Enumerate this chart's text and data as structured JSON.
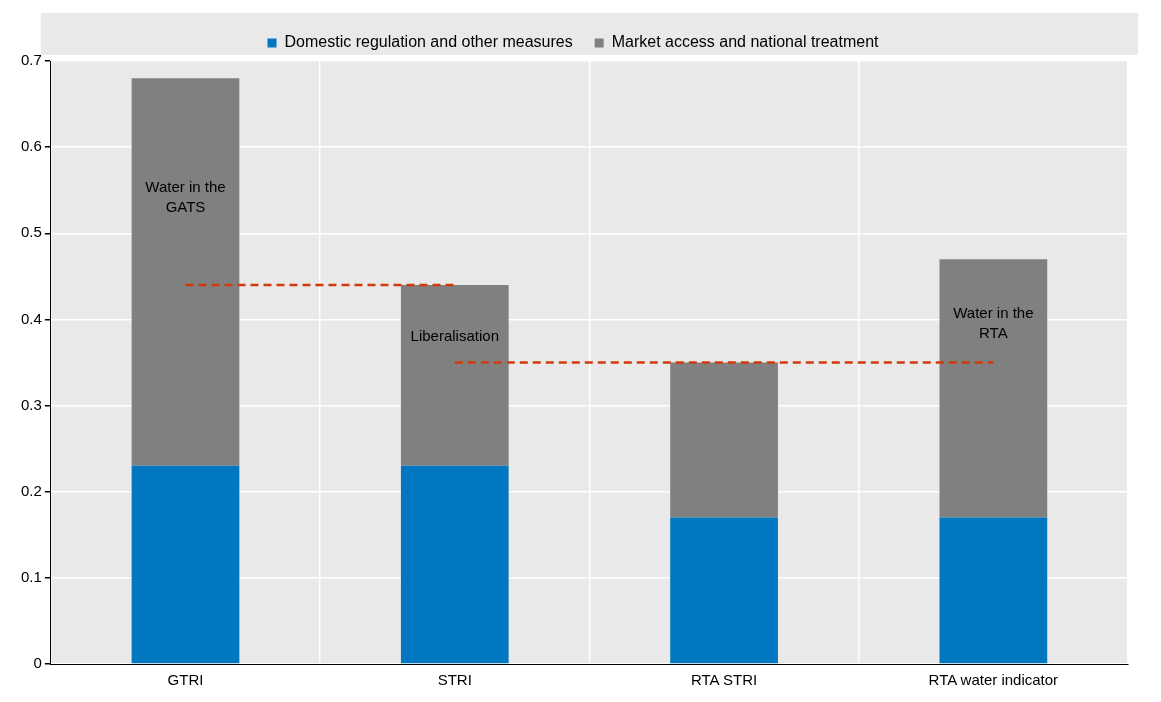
{
  "chart_data": {
    "type": "bar",
    "stacked": true,
    "categories": [
      "GTRI",
      "STRI",
      "RTA STRI",
      "RTA water indicator"
    ],
    "series": [
      {
        "name": "Domestic regulation and other measures",
        "color": "#0077c0",
        "values": [
          0.23,
          0.23,
          0.17,
          0.17
        ]
      },
      {
        "name": "Market access and national treatment",
        "color": "#808080",
        "values": [
          0.45,
          0.21,
          0.18,
          0.3
        ]
      },
      {
        "type": "line",
        "color": "#d4380d",
        "line_style": "dashed",
        "marker": "none",
        "values": [
          0.44,
          0.44,
          null,
          null
        ]
      },
      {
        "type": "line",
        "color": "#d4380d",
        "line_style": "dashed",
        "marker": "none",
        "values": [
          null,
          0.35,
          0.35,
          0.35
        ]
      }
    ],
    "annotations": [
      "Water in the GATS",
      "Liberalisation",
      "Water in the RTA"
    ],
    "ylim": [
      0,
      0.7
    ],
    "yticks": [
      0,
      0.1,
      0.2,
      0.3,
      0.4,
      0.5,
      0.6,
      0.7
    ],
    "grid": true,
    "legend": "top"
  }
}
